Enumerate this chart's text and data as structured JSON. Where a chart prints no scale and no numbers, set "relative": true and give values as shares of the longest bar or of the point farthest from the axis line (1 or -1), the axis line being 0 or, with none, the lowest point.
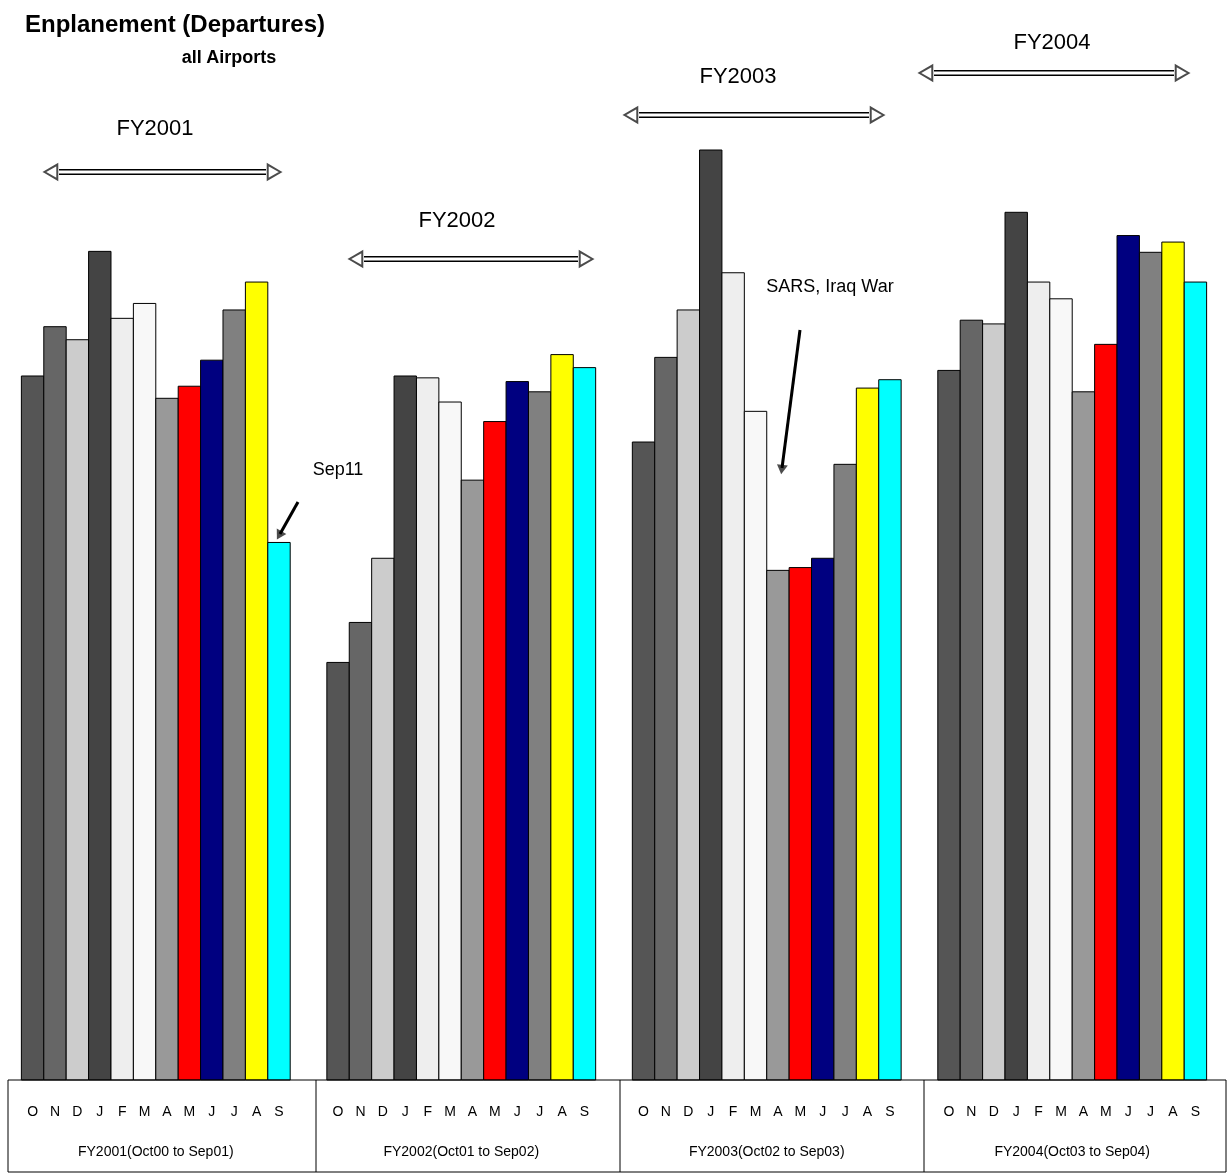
{
  "chart_data": {
    "type": "bar",
    "title": "Enplanement (Departures)",
    "subtitle": "all Airports",
    "relative": true,
    "grid": false,
    "categories": [
      "FY2001(Oct00 to Sep01)",
      "FY2002(Oct01 to Sep02)",
      "FY2003(Oct02 to Sep03)",
      "FY2004(Oct03 to Sep04)"
    ],
    "series": [
      {
        "name": "O",
        "color": "#555555",
        "values": [
          0.757,
          0.449,
          0.686,
          0.763
        ]
      },
      {
        "name": "N",
        "color": "#666666",
        "values": [
          0.81,
          0.492,
          0.777,
          0.817
        ]
      },
      {
        "name": "D",
        "color": "#cccccc",
        "values": [
          0.796,
          0.561,
          0.828,
          0.813
        ]
      },
      {
        "name": "J",
        "color": "#444444",
        "values": [
          0.891,
          0.757,
          1,
          0.933
        ]
      },
      {
        "name": "F",
        "color": "#eeeeee",
        "values": [
          0.819,
          0.755,
          0.868,
          0.858
        ]
      },
      {
        "name": "M",
        "color": "#f8f8f8",
        "values": [
          0.835,
          0.729,
          0.719,
          0.84
        ]
      },
      {
        "name": "A",
        "color": "#999999",
        "values": [
          0.733,
          0.645,
          0.548,
          0.74
        ]
      },
      {
        "name": "M",
        "color": "#ff0000",
        "values": [
          0.746,
          0.708,
          0.551,
          0.791
        ]
      },
      {
        "name": "J",
        "color": "#000080",
        "values": [
          0.774,
          0.751,
          0.561,
          0.908
        ]
      },
      {
        "name": "J",
        "color": "#808080",
        "values": [
          0.828,
          0.74,
          0.662,
          0.89
        ]
      },
      {
        "name": "A",
        "color": "#ffff00",
        "values": [
          0.858,
          0.78,
          0.744,
          0.901
        ]
      },
      {
        "name": "S",
        "color": "#00ffff",
        "values": [
          0.578,
          0.766,
          0.753,
          0.858
        ]
      }
    ],
    "annotations": [
      "FY2001",
      "FY2002",
      "FY2003",
      "FY2004",
      "Sep11",
      "SARS, Iraq War"
    ]
  }
}
